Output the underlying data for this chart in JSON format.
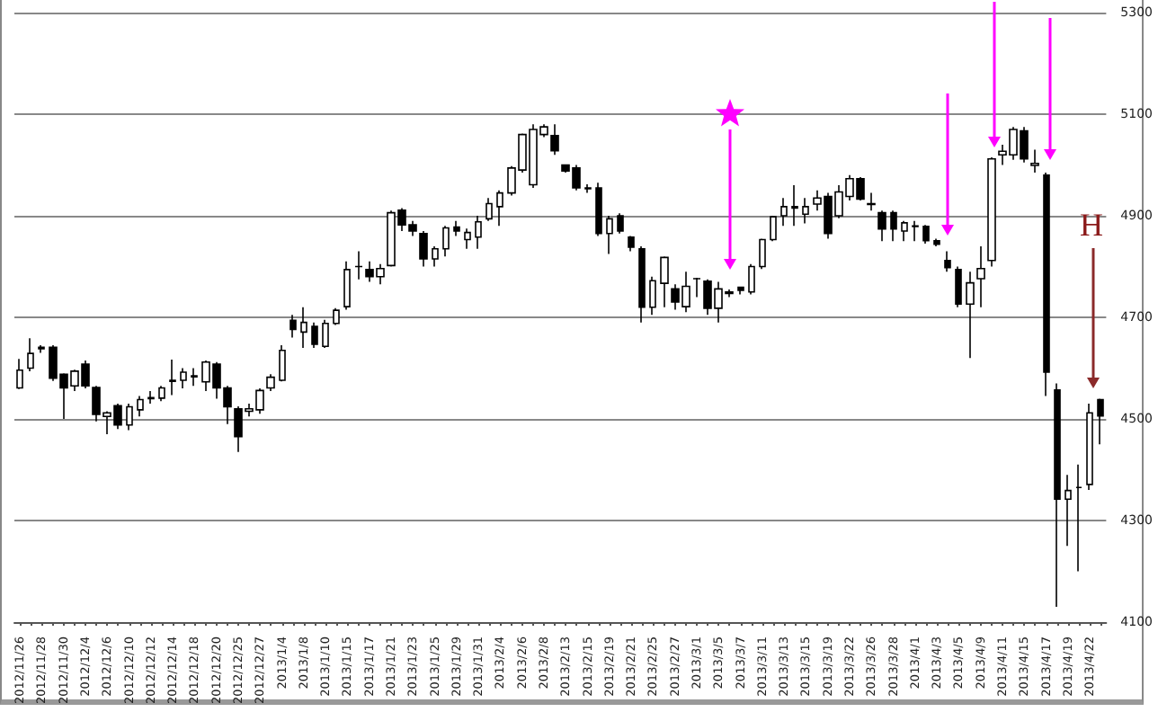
{
  "chart_data": {
    "type": "candlestick",
    "categories": [
      "2012/11/26",
      null,
      "2012/11/28",
      null,
      "2012/11/30",
      null,
      "2012/12/4",
      null,
      "2012/12/6",
      null,
      "2012/12/10",
      null,
      "2012/12/12",
      null,
      "2012/12/14",
      null,
      "2012/12/18",
      null,
      "2012/12/20",
      null,
      "2012/12/25",
      null,
      "2012/12/27",
      null,
      "2013/1/4",
      null,
      "2013/1/8",
      null,
      "2013/1/10",
      null,
      "2013/1/15",
      null,
      "2013/1/17",
      null,
      "2013/1/21",
      null,
      "2013/1/23",
      null,
      "2013/1/25",
      null,
      "2013/1/29",
      null,
      "2013/1/31",
      null,
      "2013/2/4",
      null,
      "2013/2/6",
      null,
      "2013/2/8",
      null,
      "2013/2/13",
      null,
      "2013/2/15",
      null,
      "2013/2/19",
      null,
      "2013/2/21",
      null,
      "2013/2/25",
      null,
      "2013/2/27",
      null,
      "2013/3/1",
      null,
      "2013/3/5",
      null,
      "2013/3/7",
      null,
      "2013/3/11",
      null,
      "2013/3/13",
      null,
      "2013/3/15",
      null,
      "2013/3/19",
      null,
      "2013/3/22",
      null,
      "2013/3/26",
      null,
      "2013/3/28",
      null,
      "2013/4/1",
      null,
      "2013/4/3",
      null,
      "2013/4/5",
      null,
      "2013/4/9",
      null,
      "2013/4/11",
      null,
      "2013/4/15",
      null,
      "2013/4/17",
      null,
      "2013/4/19",
      null,
      "2013/4/22",
      null
    ],
    "ohlc": [
      [
        4561,
        4618,
        4559,
        4596
      ],
      [
        4600,
        4659,
        4594,
        4629
      ],
      [
        4641,
        4645,
        4630,
        4638
      ],
      [
        4641,
        4645,
        4575,
        4580
      ],
      [
        4588,
        4590,
        4500,
        4561
      ],
      [
        4565,
        4597,
        4555,
        4594
      ],
      [
        4608,
        4615,
        4560,
        4565
      ],
      [
        4562,
        4565,
        4495,
        4509
      ],
      [
        4505,
        4515,
        4470,
        4512
      ],
      [
        4526,
        4530,
        4480,
        4488
      ],
      [
        4488,
        4530,
        4478,
        4524
      ],
      [
        4518,
        4545,
        4505,
        4538
      ],
      [
        4540,
        4555,
        4530,
        4542
      ],
      [
        4541,
        4565,
        4535,
        4561
      ],
      [
        4574,
        4617,
        4547,
        4576
      ],
      [
        4576,
        4600,
        4560,
        4592
      ],
      [
        4585,
        4600,
        4565,
        4583
      ],
      [
        4573,
        4615,
        4555,
        4612
      ],
      [
        4608,
        4612,
        4540,
        4561
      ],
      [
        4561,
        4565,
        4490,
        4524
      ],
      [
        4520,
        4525,
        4435,
        4465
      ],
      [
        4515,
        4530,
        4505,
        4520
      ],
      [
        4518,
        4560,
        4510,
        4556
      ],
      [
        4561,
        4588,
        4555,
        4582
      ],
      [
        4576,
        4645,
        4574,
        4635
      ],
      [
        4694,
        4705,
        4660,
        4676
      ],
      [
        4671,
        4720,
        4640,
        4690
      ],
      [
        4682,
        4690,
        4640,
        4647
      ],
      [
        4643,
        4695,
        4640,
        4688
      ],
      [
        4688,
        4718,
        4685,
        4714
      ],
      [
        4721,
        4810,
        4715,
        4794
      ],
      [
        4800,
        4830,
        4775,
        4800
      ],
      [
        4794,
        4810,
        4770,
        4780
      ],
      [
        4780,
        4805,
        4765,
        4796
      ],
      [
        4802,
        4910,
        4800,
        4906
      ],
      [
        4911,
        4915,
        4870,
        4882
      ],
      [
        4882,
        4890,
        4860,
        4870
      ],
      [
        4865,
        4870,
        4800,
        4815
      ],
      [
        4815,
        4840,
        4800,
        4835
      ],
      [
        4835,
        4880,
        4820,
        4876
      ],
      [
        4878,
        4890,
        4860,
        4870
      ],
      [
        4853,
        4875,
        4835,
        4867
      ],
      [
        4858,
        4900,
        4835,
        4888
      ],
      [
        4894,
        4935,
        4890,
        4924
      ],
      [
        4918,
        4950,
        4880,
        4945
      ],
      [
        4945,
        4998,
        4940,
        4994
      ],
      [
        4990,
        5062,
        4985,
        5060
      ],
      [
        4961,
        5080,
        4955,
        5070
      ],
      [
        5060,
        5080,
        5055,
        5075
      ],
      [
        5058,
        5080,
        5020,
        5028
      ],
      [
        5000,
        5000,
        4985,
        4988
      ],
      [
        4994,
        5000,
        4950,
        4955
      ],
      [
        4955,
        4962,
        4945,
        4953
      ],
      [
        4955,
        4965,
        4860,
        4865
      ],
      [
        4865,
        4900,
        4825,
        4894
      ],
      [
        4900,
        4905,
        4865,
        4870
      ],
      [
        4858,
        4860,
        4830,
        4838
      ],
      [
        4835,
        4840,
        4690,
        4720
      ],
      [
        4720,
        4780,
        4705,
        4772
      ],
      [
        4767,
        4820,
        4720,
        4818
      ],
      [
        4756,
        4765,
        4715,
        4730
      ],
      [
        4721,
        4790,
        4710,
        4761
      ],
      [
        4776,
        4778,
        4740,
        4776
      ],
      [
        4771,
        4775,
        4705,
        4718
      ],
      [
        4718,
        4770,
        4690,
        4756
      ],
      [
        4750,
        4755,
        4740,
        4747
      ],
      [
        4759,
        4760,
        4745,
        4753
      ],
      [
        4750,
        4805,
        4745,
        4800
      ],
      [
        4800,
        4855,
        4795,
        4853
      ],
      [
        4853,
        4900,
        4850,
        4898
      ],
      [
        4900,
        4935,
        4880,
        4918
      ],
      [
        4915,
        4960,
        4880,
        4918
      ],
      [
        4903,
        4935,
        4885,
        4918
      ],
      [
        4923,
        4950,
        4910,
        4935
      ],
      [
        4938,
        4945,
        4855,
        4865
      ],
      [
        4900,
        4960,
        4895,
        4947
      ],
      [
        4938,
        4980,
        4930,
        4973
      ],
      [
        4973,
        4976,
        4930,
        4933
      ],
      [
        4924,
        4945,
        4910,
        4922
      ],
      [
        4906,
        4910,
        4850,
        4874
      ],
      [
        4906,
        4910,
        4850,
        4874
      ],
      [
        4870,
        4890,
        4850,
        4886
      ],
      [
        4880,
        4890,
        4850,
        4879
      ],
      [
        4879,
        4882,
        4845,
        4851
      ],
      [
        4851,
        4855,
        4840,
        4844
      ],
      [
        4812,
        4830,
        4790,
        4798
      ],
      [
        4794,
        4800,
        4720,
        4726
      ],
      [
        4726,
        4790,
        4620,
        4768
      ],
      [
        4776,
        4840,
        4720,
        4796
      ],
      [
        4812,
        5015,
        4800,
        5012
      ],
      [
        5020,
        5040,
        5000,
        5027
      ],
      [
        5020,
        5075,
        5010,
        5070
      ],
      [
        5067,
        5075,
        5005,
        5012
      ],
      [
        4999,
        5030,
        4985,
        5003
      ],
      [
        4980,
        4985,
        4545,
        4592
      ],
      [
        4557,
        4570,
        4130,
        4342
      ],
      [
        4342,
        4390,
        4250,
        4359
      ],
      [
        4365,
        4410,
        4200,
        4365
      ],
      [
        4371,
        4530,
        4360,
        4512
      ],
      [
        4538,
        4540,
        4450,
        4506
      ]
    ],
    "ylim": [
      4100,
      5300
    ],
    "yticks": [
      4100,
      4300,
      4500,
      4700,
      4900,
      5100,
      5300
    ],
    "grid": "y",
    "annotations": [
      "H"
    ]
  }
}
